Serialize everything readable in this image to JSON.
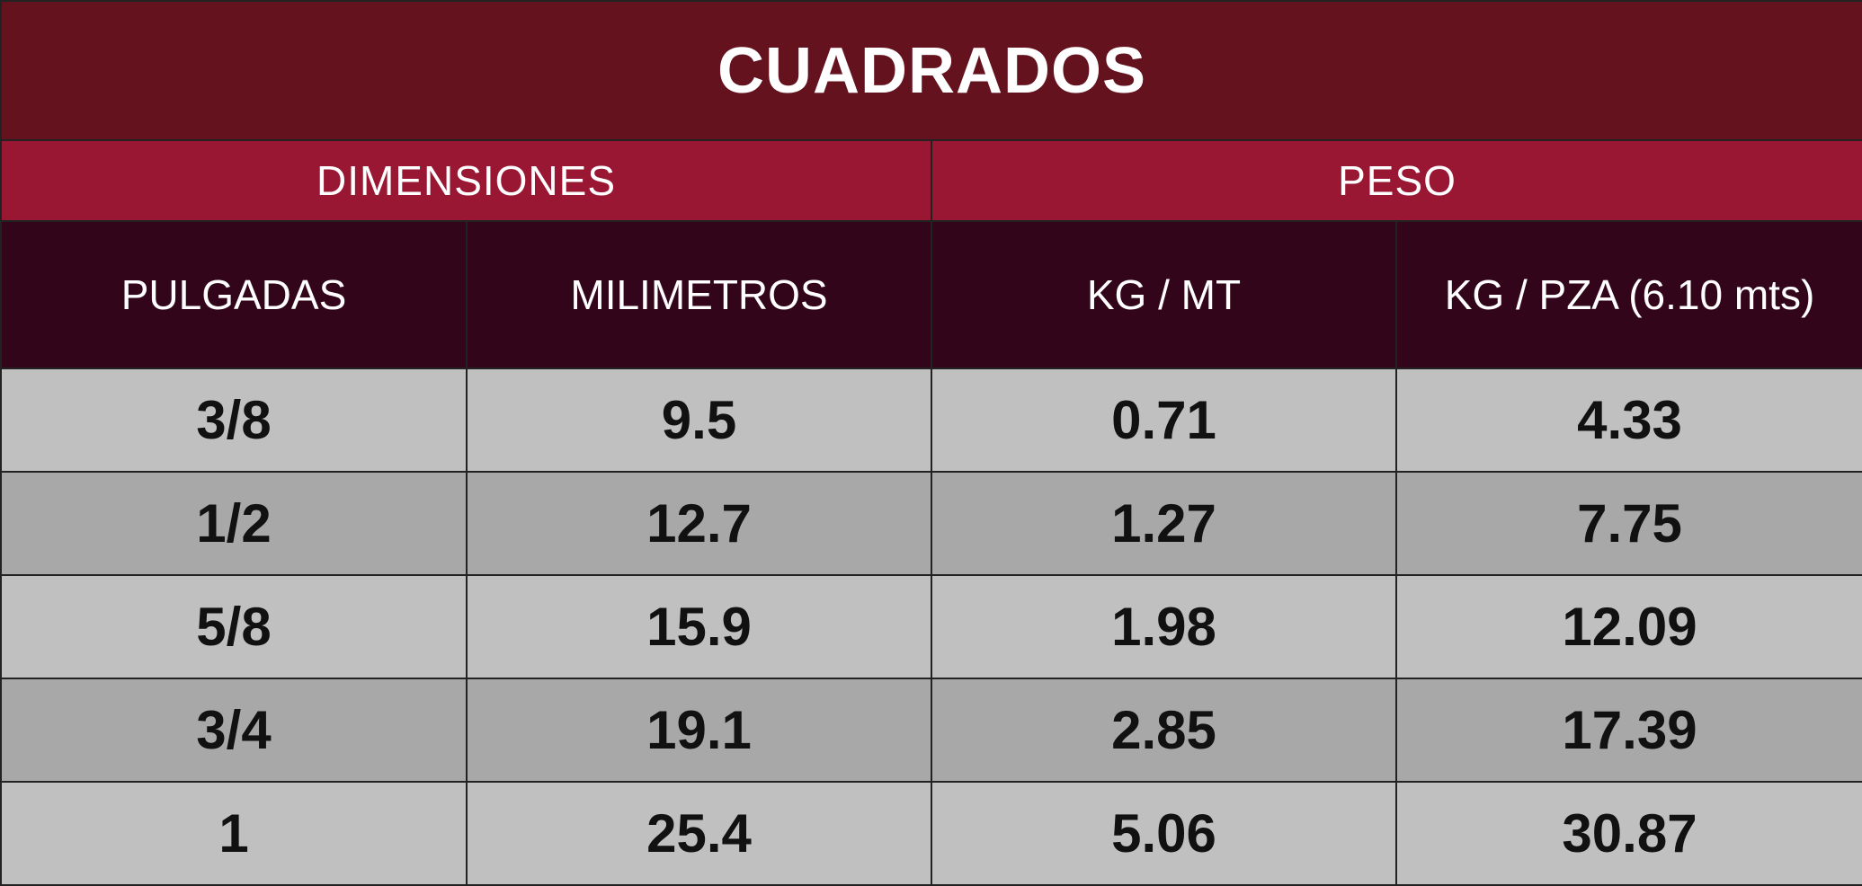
{
  "title": "CUADRADOS",
  "groups": [
    "DIMENSIONES",
    "PESO"
  ],
  "columns": [
    "PULGADAS",
    "MILIMETROS",
    "KG / MT",
    "KG / PZA (6.10 mts)"
  ],
  "rows": [
    [
      "3/8",
      "9.5",
      "0.71",
      "4.33"
    ],
    [
      "1/2",
      "12.7",
      "1.27",
      "7.75"
    ],
    [
      "5/8",
      "15.9",
      "1.98",
      "12.09"
    ],
    [
      "3/4",
      "19.1",
      "2.85",
      "17.39"
    ],
    [
      "1",
      "25.4",
      "5.06",
      "30.87"
    ]
  ],
  "colors": {
    "title_bg": "#65121f",
    "group_bg": "#9a1733",
    "subheader_bg": "#33051a",
    "row_light": "#c0c0c0",
    "row_dark": "#a8a8a8"
  }
}
